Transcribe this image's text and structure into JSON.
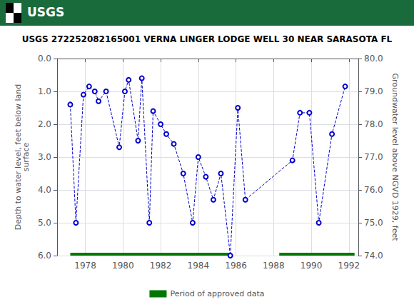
{
  "chart_data": {
    "type": "line",
    "title": "USGS 272252082165001 VERNA LINGER LODGE WELL 30 NEAR SARASOTA FL",
    "annotations": [
      {
        "text": "USGS",
        "color": "#1a6b3c"
      }
    ],
    "ylabel": "Depth to water level, feet below land\nsurface",
    "y2label": "Groundwater level above NGVD 1929, feet",
    "x": [
      1977.2,
      1977.5,
      1977.9,
      1978.2,
      1978.5,
      1978.7,
      1979.1,
      1979.8,
      1980.1,
      1980.3,
      1980.8,
      1981.0,
      1981.4,
      1981.6,
      1982.0,
      1982.3,
      1982.7,
      1983.2,
      1983.7,
      1984.0,
      1984.4,
      1984.8,
      1985.2,
      1985.7,
      1986.1,
      1986.5,
      1989.0,
      1989.4,
      1989.9,
      1990.4,
      1991.1,
      1991.8
    ],
    "series": [
      {
        "type": "line",
        "color": "#0000cc",
        "line_style": "dashed",
        "marker": "circle",
        "values": [
          1.4,
          5.0,
          1.1,
          0.85,
          1.0,
          1.3,
          1.0,
          2.7,
          1.0,
          0.65,
          2.5,
          0.6,
          5.0,
          1.6,
          2.0,
          2.3,
          2.6,
          3.5,
          5.0,
          3.0,
          3.6,
          4.3,
          3.5,
          6.0,
          1.5,
          4.3,
          3.1,
          1.65,
          1.65,
          5.0,
          2.3,
          0.85
        ]
      },
      {
        "type": "bar",
        "orientation": "horizontal",
        "name": "Period of approved data",
        "color": "#007700",
        "y": 6.0,
        "segments": [
          [
            1977.2,
            1985.7
          ],
          [
            1988.3,
            1992.3
          ]
        ]
      }
    ],
    "xlim": [
      1976.5,
      1992.5
    ],
    "xticks": [
      1978,
      1980,
      1982,
      1984,
      1986,
      1988,
      1990,
      1992
    ],
    "ylim": [
      6.0,
      0.0
    ],
    "yticks": [
      {
        "value": 0.0,
        "label": "0.0"
      },
      {
        "value": 1.0,
        "label": "1.0"
      },
      {
        "value": 2.0,
        "label": "2.0"
      },
      {
        "value": 3.0,
        "label": "3.0"
      },
      {
        "value": 4.0,
        "label": "4.0"
      },
      {
        "value": 5.0,
        "label": "5.0"
      },
      {
        "value": 6.0,
        "label": "6.0"
      }
    ],
    "y2lim": [
      74.0,
      80.0
    ],
    "y2ticks": [
      {
        "value": 74.0,
        "label": "74.0"
      },
      {
        "value": 75.0,
        "label": "75.0"
      },
      {
        "value": 76.0,
        "label": "76.0"
      },
      {
        "value": 77.0,
        "label": "77.0"
      },
      {
        "value": 78.0,
        "label": "78.0"
      },
      {
        "value": 79.0,
        "label": "79.0"
      },
      {
        "value": 80.0,
        "label": "80.0"
      }
    ],
    "grid": true,
    "legend": "bottom"
  }
}
